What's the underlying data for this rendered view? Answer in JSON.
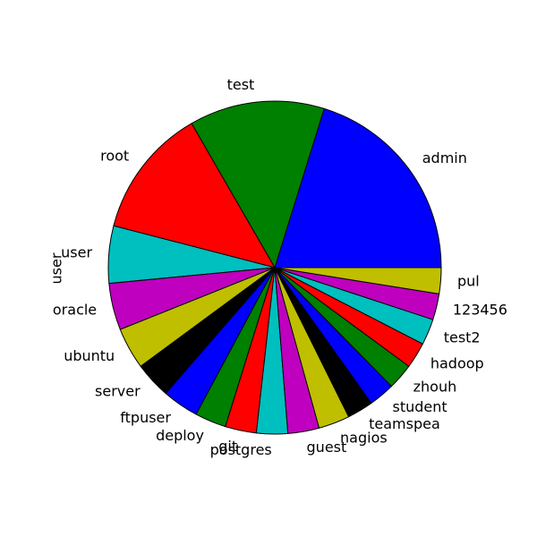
{
  "chart_data": {
    "type": "pie",
    "ylabel": "user",
    "start_angle": 0,
    "direction": "counterclockwise",
    "slices": [
      {
        "label": "admin",
        "value": 20.0,
        "color": "#0000ff"
      },
      {
        "label": "test",
        "value": 13.0,
        "color": "#008000"
      },
      {
        "label": "root",
        "value": 12.5,
        "color": "#ff0000"
      },
      {
        "label": "user",
        "value": 5.5,
        "color": "#00bfbf"
      },
      {
        "label": "oracle",
        "value": 4.5,
        "color": "#bf00bf"
      },
      {
        "label": "ubuntu",
        "value": 4.0,
        "color": "#bfbf00"
      },
      {
        "label": "server",
        "value": 3.5,
        "color": "#000000"
      },
      {
        "label": "ftpuser",
        "value": 3.5,
        "color": "#0000ff"
      },
      {
        "label": "deploy",
        "value": 3.0,
        "color": "#008000"
      },
      {
        "label": "git",
        "value": 3.0,
        "color": "#ff0000"
      },
      {
        "label": "postgres",
        "value": 3.0,
        "color": "#00bfbf"
      },
      {
        "label": "guest",
        "value": 3.0,
        "color": "#bf00bf"
      },
      {
        "label": "nagios",
        "value": 3.0,
        "color": "#bfbf00"
      },
      {
        "label": "teamspea",
        "value": 2.5,
        "color": "#000000"
      },
      {
        "label": "student",
        "value": 2.5,
        "color": "#0000ff"
      },
      {
        "label": "zhouh",
        "value": 2.5,
        "color": "#008000"
      },
      {
        "label": "hadoop",
        "value": 2.5,
        "color": "#ff0000"
      },
      {
        "label": "test2",
        "value": 2.5,
        "color": "#00bfbf"
      },
      {
        "label": "123456",
        "value": 2.5,
        "color": "#bf00bf"
      },
      {
        "label": "pul",
        "value": 2.5,
        "color": "#bfbf00"
      }
    ]
  }
}
